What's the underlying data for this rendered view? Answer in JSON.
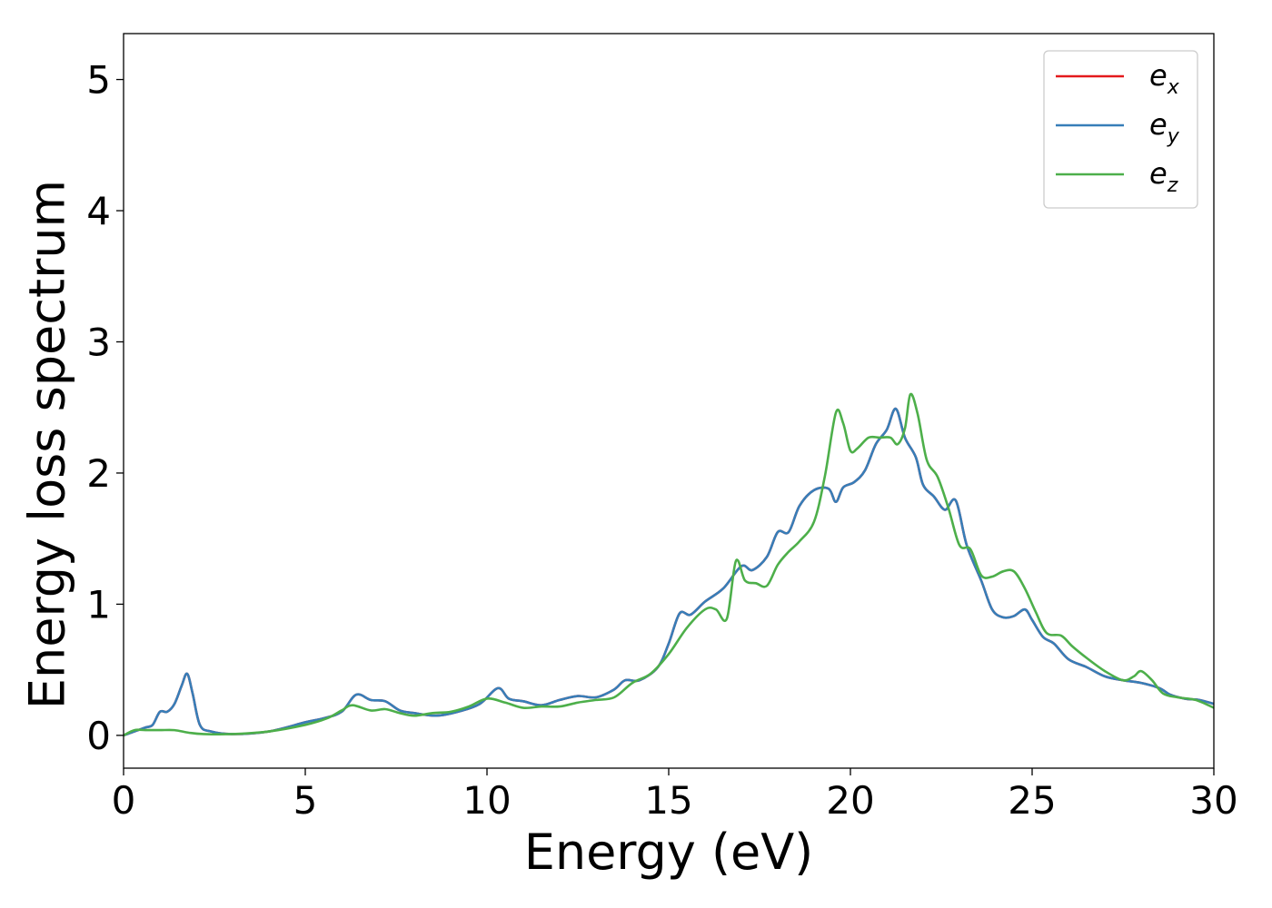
{
  "chart_data": {
    "type": "line",
    "xlabel": "Energy (eV)",
    "ylabel": "Energy loss spectrum",
    "xlim": [
      0,
      30
    ],
    "ylim": [
      -0.25,
      5.35
    ],
    "xticks": [
      0,
      5,
      10,
      15,
      20,
      25,
      30
    ],
    "xtick_labels": [
      "0",
      "5",
      "10",
      "15",
      "20",
      "25",
      "30"
    ],
    "yticks": [
      0,
      1,
      2,
      3,
      4,
      5
    ],
    "ytick_labels": [
      "0",
      "1",
      "2",
      "3",
      "4",
      "5"
    ],
    "grid": false,
    "legend_position": "top-right",
    "series": [
      {
        "name": "e",
        "subscript": "x",
        "color": "#e41a1c",
        "x": [
          0,
          0.3,
          0.6,
          0.8,
          1.0,
          1.2,
          1.4,
          1.6,
          1.75,
          1.9,
          2.1,
          2.4,
          3.0,
          4.0,
          5.0,
          5.5,
          6.0,
          6.4,
          6.8,
          7.2,
          7.6,
          8.0,
          8.6,
          9.2,
          9.8,
          10.3,
          10.6,
          11.0,
          11.5,
          12.0,
          12.5,
          13.0,
          13.5,
          13.8,
          14.2,
          14.7,
          15.0,
          15.3,
          15.6,
          16.0,
          16.5,
          17.0,
          17.3,
          17.7,
          18.0,
          18.3,
          18.6,
          19.0,
          19.4,
          19.6,
          19.8,
          20.1,
          20.4,
          20.7,
          21.0,
          21.25,
          21.5,
          21.8,
          22.0,
          22.3,
          22.6,
          22.9,
          23.2,
          23.6,
          23.9,
          24.2,
          24.5,
          24.8,
          25.0,
          25.3,
          25.6,
          26.0,
          26.5,
          27.0,
          27.5,
          28.0,
          28.5,
          28.8,
          29.2,
          29.6,
          30.0
        ],
        "y": [
          0.0,
          0.03,
          0.06,
          0.08,
          0.18,
          0.18,
          0.24,
          0.38,
          0.47,
          0.32,
          0.08,
          0.03,
          0.01,
          0.03,
          0.1,
          0.13,
          0.18,
          0.31,
          0.27,
          0.26,
          0.19,
          0.17,
          0.15,
          0.18,
          0.24,
          0.36,
          0.28,
          0.26,
          0.23,
          0.27,
          0.3,
          0.29,
          0.35,
          0.42,
          0.42,
          0.52,
          0.7,
          0.93,
          0.92,
          1.02,
          1.12,
          1.29,
          1.26,
          1.36,
          1.55,
          1.55,
          1.75,
          1.87,
          1.88,
          1.78,
          1.89,
          1.93,
          2.02,
          2.22,
          2.33,
          2.49,
          2.27,
          2.12,
          1.91,
          1.82,
          1.72,
          1.79,
          1.45,
          1.18,
          0.96,
          0.9,
          0.91,
          0.96,
          0.88,
          0.75,
          0.7,
          0.58,
          0.52,
          0.45,
          0.42,
          0.4,
          0.36,
          0.31,
          0.28,
          0.27,
          0.24
        ]
      },
      {
        "name": "e",
        "subscript": "y",
        "color": "#377eb8",
        "x": [
          0,
          0.3,
          0.6,
          0.8,
          1.0,
          1.2,
          1.4,
          1.6,
          1.75,
          1.9,
          2.1,
          2.4,
          3.0,
          4.0,
          5.0,
          5.5,
          6.0,
          6.4,
          6.8,
          7.2,
          7.6,
          8.0,
          8.6,
          9.2,
          9.8,
          10.3,
          10.6,
          11.0,
          11.5,
          12.0,
          12.5,
          13.0,
          13.5,
          13.8,
          14.2,
          14.7,
          15.0,
          15.3,
          15.6,
          16.0,
          16.5,
          17.0,
          17.3,
          17.7,
          18.0,
          18.3,
          18.6,
          19.0,
          19.4,
          19.6,
          19.8,
          20.1,
          20.4,
          20.7,
          21.0,
          21.25,
          21.5,
          21.8,
          22.0,
          22.3,
          22.6,
          22.9,
          23.2,
          23.6,
          23.9,
          24.2,
          24.5,
          24.8,
          25.0,
          25.3,
          25.6,
          26.0,
          26.5,
          27.0,
          27.5,
          28.0,
          28.5,
          28.8,
          29.2,
          29.6,
          30.0
        ],
        "y": [
          0.0,
          0.03,
          0.06,
          0.08,
          0.18,
          0.18,
          0.24,
          0.38,
          0.47,
          0.32,
          0.08,
          0.03,
          0.01,
          0.03,
          0.1,
          0.13,
          0.18,
          0.31,
          0.27,
          0.26,
          0.19,
          0.17,
          0.15,
          0.18,
          0.24,
          0.36,
          0.28,
          0.26,
          0.23,
          0.27,
          0.3,
          0.29,
          0.35,
          0.42,
          0.42,
          0.52,
          0.7,
          0.93,
          0.92,
          1.02,
          1.12,
          1.29,
          1.26,
          1.36,
          1.55,
          1.55,
          1.75,
          1.87,
          1.88,
          1.78,
          1.89,
          1.93,
          2.02,
          2.22,
          2.33,
          2.49,
          2.27,
          2.12,
          1.91,
          1.82,
          1.72,
          1.79,
          1.45,
          1.18,
          0.96,
          0.9,
          0.91,
          0.96,
          0.88,
          0.75,
          0.7,
          0.58,
          0.52,
          0.45,
          0.42,
          0.4,
          0.36,
          0.31,
          0.28,
          0.27,
          0.24
        ]
      },
      {
        "name": "e",
        "subscript": "z",
        "color": "#4daf4a",
        "x": [
          0,
          0.3,
          0.6,
          1.0,
          1.4,
          1.8,
          2.2,
          3.0,
          4.0,
          5.0,
          5.6,
          6.0,
          6.3,
          6.8,
          7.2,
          7.6,
          8.0,
          8.5,
          9.0,
          9.5,
          10.0,
          10.5,
          11.0,
          11.5,
          12.0,
          12.5,
          13.0,
          13.5,
          14.0,
          14.5,
          15.0,
          15.5,
          16.0,
          16.3,
          16.6,
          16.85,
          17.1,
          17.4,
          17.7,
          18.0,
          18.3,
          18.6,
          19.0,
          19.3,
          19.6,
          19.8,
          20.0,
          20.2,
          20.5,
          20.8,
          21.1,
          21.3,
          21.5,
          21.65,
          21.85,
          22.1,
          22.4,
          22.7,
          23.0,
          23.3,
          23.6,
          23.9,
          24.2,
          24.5,
          24.8,
          25.1,
          25.4,
          25.8,
          26.1,
          26.5,
          27.0,
          27.5,
          27.8,
          28.0,
          28.3,
          28.6,
          29.0,
          29.5,
          30.0
        ],
        "y": [
          0.0,
          0.04,
          0.04,
          0.04,
          0.04,
          0.02,
          0.01,
          0.01,
          0.03,
          0.08,
          0.13,
          0.19,
          0.23,
          0.19,
          0.2,
          0.17,
          0.15,
          0.17,
          0.18,
          0.22,
          0.28,
          0.25,
          0.21,
          0.22,
          0.22,
          0.25,
          0.27,
          0.29,
          0.4,
          0.47,
          0.62,
          0.82,
          0.96,
          0.96,
          0.89,
          1.33,
          1.18,
          1.16,
          1.14,
          1.3,
          1.4,
          1.48,
          1.63,
          1.98,
          2.46,
          2.38,
          2.17,
          2.19,
          2.27,
          2.27,
          2.27,
          2.22,
          2.34,
          2.6,
          2.45,
          2.1,
          1.97,
          1.73,
          1.45,
          1.42,
          1.22,
          1.21,
          1.25,
          1.25,
          1.12,
          0.94,
          0.78,
          0.76,
          0.68,
          0.59,
          0.49,
          0.42,
          0.45,
          0.49,
          0.42,
          0.32,
          0.29,
          0.27,
          0.21
        ]
      }
    ]
  }
}
